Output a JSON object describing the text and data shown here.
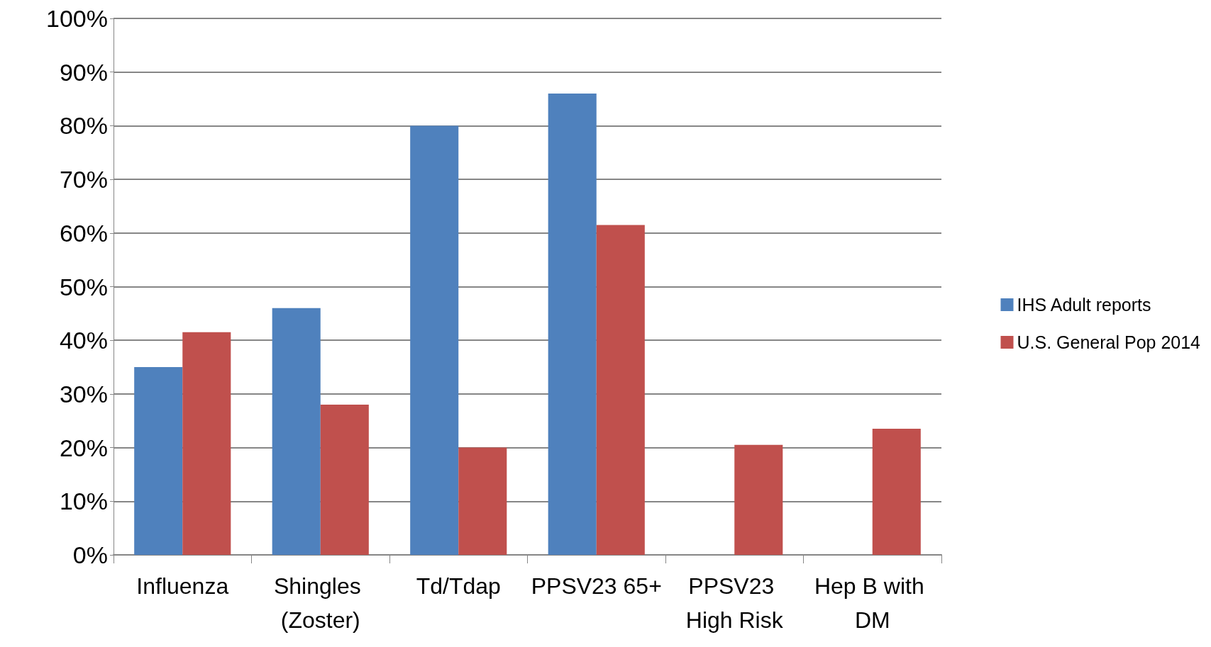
{
  "chart_data": {
    "type": "bar",
    "categories": [
      "Influenza",
      "Shingles (Zoster)",
      "Td/Tdap",
      "PPSV23 65+",
      "PPSV23 High Risk",
      "Hep B with DM"
    ],
    "series": [
      {
        "name": "IHS Adult reports",
        "color": "#4f81bd",
        "values": [
          35,
          46,
          80,
          86,
          null,
          null
        ]
      },
      {
        "name": "U.S. General Pop 2014",
        "color": "#c0504d",
        "values": [
          41.5,
          28,
          20,
          61.5,
          20.5,
          23.5
        ]
      }
    ],
    "ylim": [
      0,
      100
    ],
    "yticks": [
      {
        "value": 0,
        "label": "0%"
      },
      {
        "value": 10,
        "label": "10%"
      },
      {
        "value": 20,
        "label": "20%"
      },
      {
        "value": 30,
        "label": "30%"
      },
      {
        "value": 40,
        "label": "40%"
      },
      {
        "value": 50,
        "label": "50%"
      },
      {
        "value": 60,
        "label": "60%"
      },
      {
        "value": 70,
        "label": "70%"
      },
      {
        "value": 80,
        "label": "80%"
      },
      {
        "value": 90,
        "label": "90%"
      },
      {
        "value": 100,
        "label": "100%"
      }
    ],
    "grid": "y",
    "legend": "right"
  }
}
